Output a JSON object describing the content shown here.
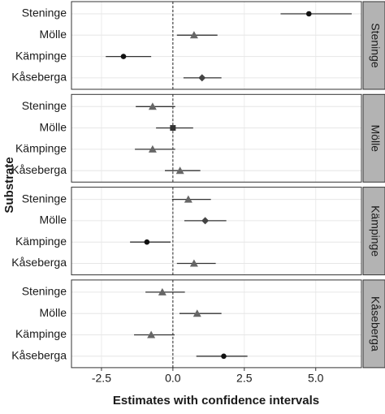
{
  "chart_data": {
    "type": "dotinterval",
    "xlabel": "Estimates with confidence intervals",
    "ylabel": "Substrate",
    "xlim": [
      -3.55,
      6.6
    ],
    "xticks": [
      -2.5,
      {
        "value": 0,
        "label": "0.0"
      },
      2.5,
      {
        "value": 5,
        "label": "5.0"
      }
    ],
    "refline": 0,
    "grid": true,
    "facets": [
      {
        "name": "Steninge",
        "categories": [
          "Steninge",
          "Mölle",
          "Kämpinge",
          "Kåseberga"
        ],
        "values": [
          4.76,
          0.74,
          -1.73,
          1.02
        ],
        "lower": [
          3.77,
          0.14,
          -2.35,
          0.37
        ],
        "upper": [
          6.26,
          1.56,
          -0.76,
          1.7
        ],
        "shapes": [
          "circle",
          "triangle",
          "circle",
          "diamond"
        ]
      },
      {
        "name": "Mölle",
        "categories": [
          "Steninge",
          "Mölle",
          "Kämpinge",
          "Kåseberga"
        ],
        "values": [
          -0.71,
          0,
          -0.71,
          0.25
        ],
        "lower": [
          -1.3,
          -0.59,
          -1.33,
          -0.28
        ],
        "upper": [
          0.08,
          0.71,
          0.08,
          0.96
        ],
        "shapes": [
          "triangle",
          "square",
          "triangle",
          "triangle"
        ]
      },
      {
        "name": "Kämpinge",
        "categories": [
          "Steninge",
          "Mölle",
          "Kämpinge",
          "Kåseberga"
        ],
        "values": [
          0.54,
          1.13,
          -0.91,
          0.74
        ],
        "lower": [
          -0.03,
          0.4,
          -1.5,
          0.14
        ],
        "upper": [
          1.33,
          1.87,
          -0.08,
          1.5
        ],
        "shapes": [
          "triangle",
          "diamond",
          "circle",
          "triangle"
        ]
      },
      {
        "name": "Kåseberga",
        "categories": [
          "Steninge",
          "Mölle",
          "Kämpinge",
          "Kåseberga"
        ],
        "values": [
          -0.37,
          0.85,
          -0.76,
          1.78
        ],
        "lower": [
          -0.96,
          0.23,
          -1.36,
          0.82
        ],
        "upper": [
          0.42,
          1.7,
          0.06,
          2.61
        ],
        "shapes": [
          "triangle",
          "triangle",
          "triangle",
          "circle"
        ]
      }
    ]
  }
}
